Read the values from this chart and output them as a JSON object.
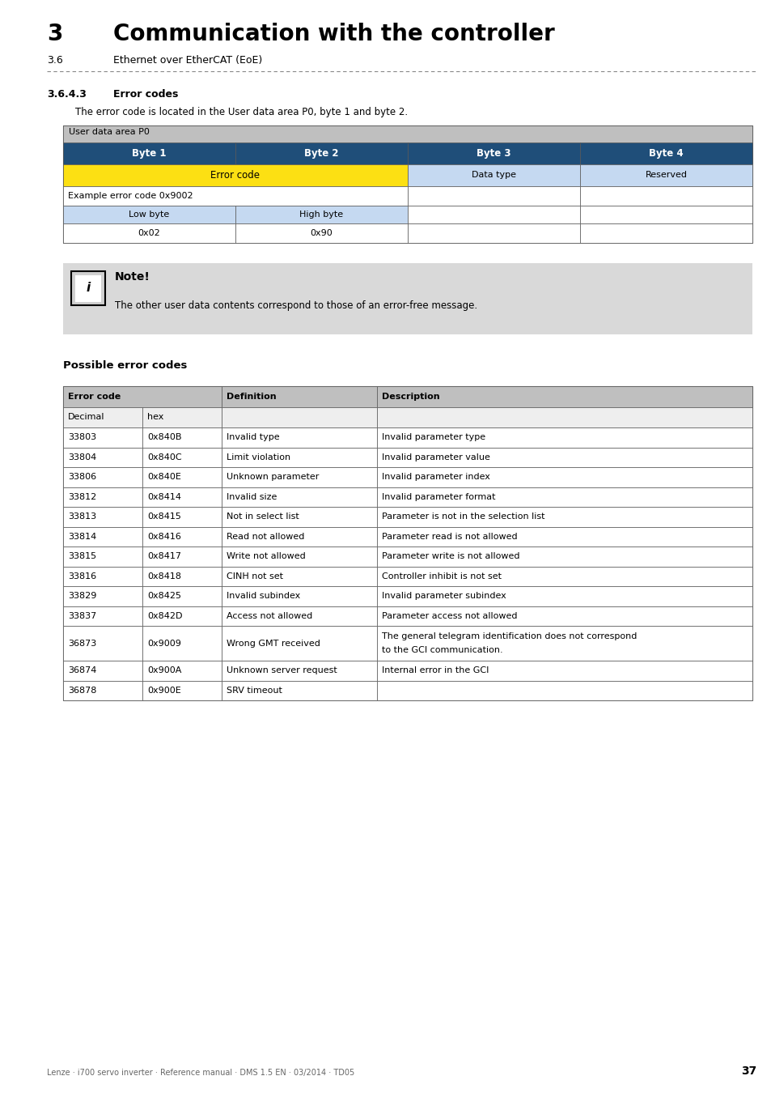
{
  "page_bg": "#ffffff",
  "header_num": "3",
  "header_title": "Communication with the controller",
  "header_sub_num": "3.6",
  "header_sub_title": "Ethernet over EtherCAT (EoE)",
  "section_num": "3.6.4.3",
  "section_title": "Error codes",
  "section_intro": "The error code is located in the User data area P0, byte 1 and byte 2.",
  "user_data_label": "User data area P0",
  "byte_cols": [
    "Byte 1",
    "Byte 2",
    "Byte 3",
    "Byte 4"
  ],
  "blue_col_bg": "#1f4e79",
  "blue_col_fg": "#ffffff",
  "yellow_bg": "#fce013",
  "grey_header_bg": "#bfbfbf",
  "light_blue_bg": "#c5d9f1",
  "note_bg": "#d9d9d9",
  "note_text": "The other user data contents correspond to those of an error-free message.",
  "possible_title": "Possible error codes",
  "error_table_rows": [
    [
      "33803",
      "0x840B",
      "Invalid type",
      "Invalid parameter type"
    ],
    [
      "33804",
      "0x840C",
      "Limit violation",
      "Invalid parameter value"
    ],
    [
      "33806",
      "0x840E",
      "Unknown parameter",
      "Invalid parameter index"
    ],
    [
      "33812",
      "0x8414",
      "Invalid size",
      "Invalid parameter format"
    ],
    [
      "33813",
      "0x8415",
      "Not in select list",
      "Parameter is not in the selection list"
    ],
    [
      "33814",
      "0x8416",
      "Read not allowed",
      "Parameter read is not allowed"
    ],
    [
      "33815",
      "0x8417",
      "Write not allowed",
      "Parameter write is not allowed"
    ],
    [
      "33816",
      "0x8418",
      "CINH not set",
      "Controller inhibit is not set"
    ],
    [
      "33829",
      "0x8425",
      "Invalid subindex",
      "Invalid parameter subindex"
    ],
    [
      "33837",
      "0x842D",
      "Access not allowed",
      "Parameter access not allowed"
    ],
    [
      "36873",
      "0x9009",
      "Wrong GMT received",
      "The general telegram identification does not correspond\nto the GCI communication."
    ],
    [
      "36874",
      "0x900A",
      "Unknown server request",
      "Internal error in the GCI"
    ],
    [
      "36878",
      "0x900E",
      "SRV timeout",
      ""
    ]
  ],
  "footer_text": "Lenze · i700 servo inverter · Reference manual · DMS 1.5 EN · 03/2014 · TD05",
  "footer_page": "37"
}
